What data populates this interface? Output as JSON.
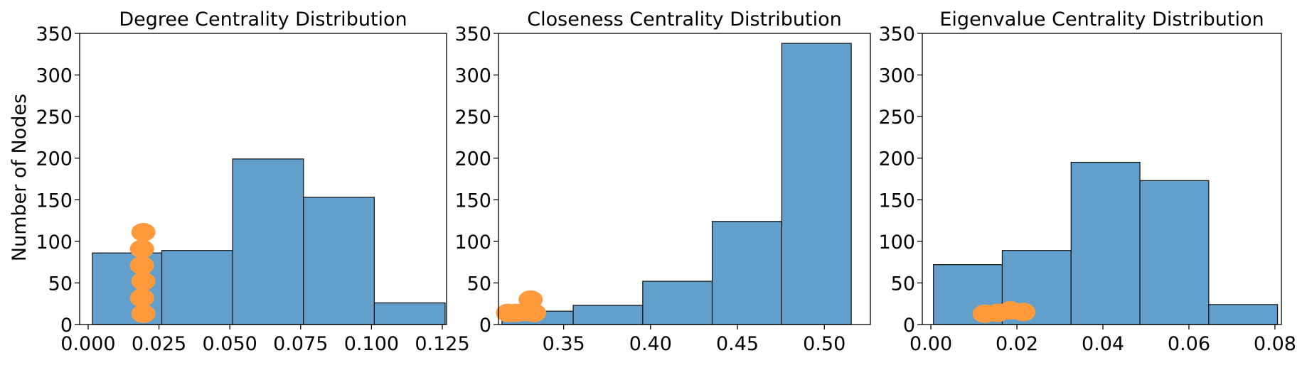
{
  "ylabel": "Number of Nodes",
  "colors": {
    "bar": "#62a0cb",
    "bar_edge": "#1a1a1a",
    "marker": "#ff9a3c"
  },
  "chart_data": [
    {
      "type": "bar",
      "title": "Degree Centrality Distribution",
      "xlabel": "",
      "ylabel": "Number of Nodes",
      "xlim": [
        -0.003,
        0.1265
      ],
      "ylim": [
        0,
        350
      ],
      "xticks": [
        "0.000",
        "0.025",
        "0.050",
        "0.075",
        "0.100",
        "0.125"
      ],
      "xtick_values": [
        0.0,
        0.025,
        0.05,
        0.075,
        0.1,
        0.125
      ],
      "yticks": [
        0,
        50,
        100,
        150,
        200,
        250,
        300,
        350
      ],
      "bins": [
        [
          0.0015,
          0.026
        ],
        [
          0.026,
          0.051
        ],
        [
          0.051,
          0.076
        ],
        [
          0.076,
          0.101
        ],
        [
          0.101,
          0.126
        ]
      ],
      "values": [
        86,
        89,
        199,
        153,
        26
      ],
      "markers": [
        {
          "x": 0.0195,
          "y": 111
        },
        {
          "x": 0.019,
          "y": 91
        },
        {
          "x": 0.019,
          "y": 71
        },
        {
          "x": 0.0195,
          "y": 52
        },
        {
          "x": 0.019,
          "y": 32
        },
        {
          "x": 0.0195,
          "y": 13
        }
      ]
    },
    {
      "type": "bar",
      "title": "Closeness Centrality Distribution",
      "xlabel": "",
      "ylabel": "",
      "xlim": [
        0.3125,
        0.5265
      ],
      "ylim": [
        0,
        350
      ],
      "xticks": [
        "0.35",
        "0.40",
        "0.45",
        "0.50"
      ],
      "xtick_values": [
        0.35,
        0.4,
        0.45,
        0.5
      ],
      "yticks": [
        0,
        50,
        100,
        150,
        200,
        250,
        300,
        350
      ],
      "bins": [
        [
          0.3145,
          0.3555
        ],
        [
          0.3555,
          0.3955
        ],
        [
          0.3955,
          0.4355
        ],
        [
          0.4355,
          0.4755
        ],
        [
          0.4755,
          0.5155
        ]
      ],
      "values": [
        16,
        23,
        52,
        124,
        338
      ],
      "markers": [
        {
          "x": 0.318,
          "y": 14
        },
        {
          "x": 0.3225,
          "y": 14
        },
        {
          "x": 0.3275,
          "y": 15
        },
        {
          "x": 0.331,
          "y": 30
        },
        {
          "x": 0.333,
          "y": 14
        }
      ]
    },
    {
      "type": "bar",
      "title": "Eigenvalue Centrality Distribution",
      "xlabel": "",
      "ylabel": "",
      "xlim": [
        -0.002,
        0.0815
      ],
      "ylim": [
        0,
        350
      ],
      "xticks": [
        "0.00",
        "0.02",
        "0.04",
        "0.06",
        "0.08"
      ],
      "xtick_values": [
        0.0,
        0.02,
        0.04,
        0.06,
        0.08
      ],
      "yticks": [
        0,
        50,
        100,
        150,
        200,
        250,
        300,
        350
      ],
      "bins": [
        [
          0.0006,
          0.0166
        ],
        [
          0.0166,
          0.0326
        ],
        [
          0.0326,
          0.0486
        ],
        [
          0.0486,
          0.0646
        ],
        [
          0.0646,
          0.0806
        ]
      ],
      "values": [
        72,
        89,
        195,
        173,
        24
      ],
      "markers": [
        {
          "x": 0.0125,
          "y": 13
        },
        {
          "x": 0.0155,
          "y": 14
        },
        {
          "x": 0.0185,
          "y": 17
        },
        {
          "x": 0.0215,
          "y": 15
        }
      ]
    }
  ]
}
